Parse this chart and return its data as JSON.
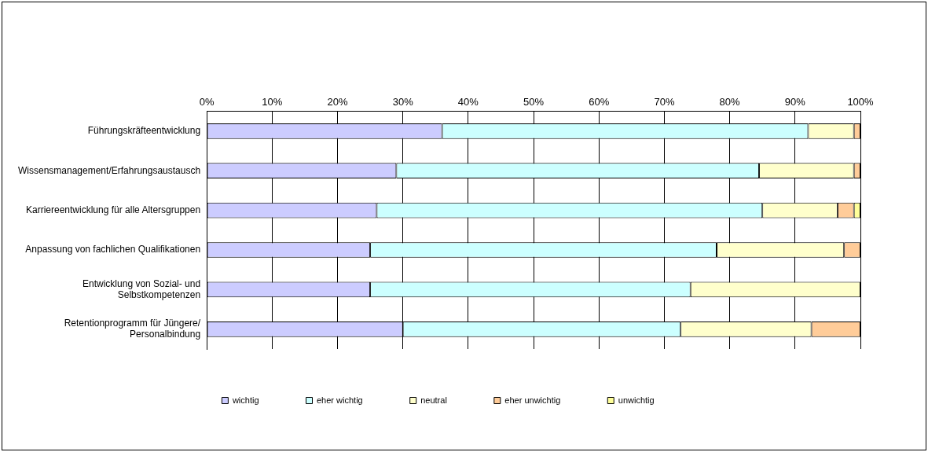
{
  "chart_data": {
    "type": "bar",
    "orientation": "horizontal",
    "stacked": true,
    "categories": [
      "Führungskräfteentwicklung",
      "Wissensmanagement/Erfahrungsaustausch",
      "Karriereentwicklung für alle Altersgruppen",
      "Anpassung von fachlichen Qualifikationen",
      "Entwicklung von Sozial- und Selbstkompetenzen",
      "Retentionprogramm für Jüngere/ Personalbindung"
    ],
    "series": [
      {
        "name": "wichtig",
        "color": "#ccccff",
        "values": [
          36,
          29,
          26,
          25,
          25,
          30
        ]
      },
      {
        "name": "eher wichtig",
        "color": "#ccffff",
        "values": [
          56,
          55.5,
          59,
          53,
          49,
          42.5
        ]
      },
      {
        "name": "neutral",
        "color": "#ffffcc",
        "values": [
          7,
          14.5,
          11.5,
          19.5,
          26,
          20
        ]
      },
      {
        "name": "eher unwichtig",
        "color": "#ffcc99",
        "values": [
          1,
          1,
          2.5,
          2.5,
          0,
          7.5
        ]
      },
      {
        "name": "unwichtig",
        "color": "#ffff99",
        "values": [
          0,
          0,
          1,
          0,
          0,
          0
        ]
      }
    ],
    "xlim": [
      0,
      100
    ],
    "xticks": [
      {
        "value": 0,
        "label": "0%"
      },
      {
        "value": 10,
        "label": "10%"
      },
      {
        "value": 20,
        "label": "20%"
      },
      {
        "value": 30,
        "label": "30%"
      },
      {
        "value": 40,
        "label": "40%"
      },
      {
        "value": 50,
        "label": "50%"
      },
      {
        "value": 60,
        "label": "60%"
      },
      {
        "value": 70,
        "label": "70%"
      },
      {
        "value": 80,
        "label": "80%"
      },
      {
        "value": 90,
        "label": "90%"
      },
      {
        "value": 100,
        "label": "100%"
      }
    ],
    "grid": "x",
    "legend": "bottom"
  }
}
